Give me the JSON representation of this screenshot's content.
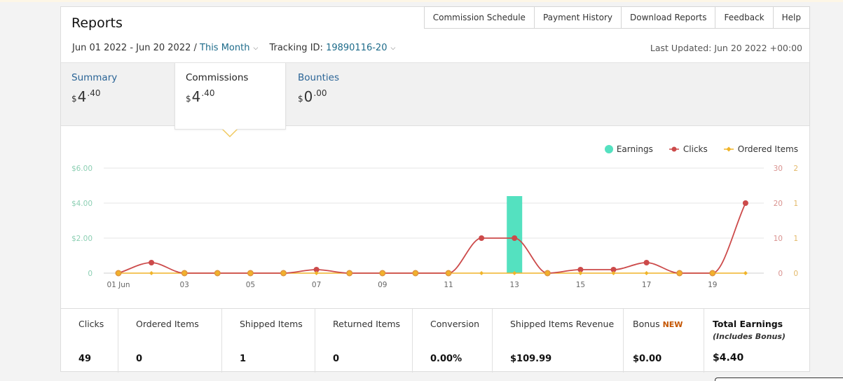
{
  "header": {
    "title": "Reports",
    "nav": [
      "Commission Schedule",
      "Payment History",
      "Download Reports",
      "Feedback",
      "Help"
    ],
    "date_range": "Jun 01 2022 - Jun 20 2022 /",
    "period": "This Month",
    "tracking_label": "Tracking ID:",
    "tracking_id": "19890116-20",
    "last_updated": "Last Updated: Jun 20 2022 +00:00"
  },
  "summary_tabs": [
    {
      "label": "Summary",
      "currency": "$",
      "whole": "4",
      "fraction": ".40"
    },
    {
      "label": "Commissions",
      "currency": "$",
      "whole": "4",
      "fraction": ".40"
    },
    {
      "label": "Bounties",
      "currency": "$",
      "whole": "0",
      "fraction": ".00"
    }
  ],
  "chart_data": {
    "type": "bar+line",
    "legend": [
      "Earnings",
      "Clicks",
      "Ordered Items"
    ],
    "legend_placement": "top-right",
    "x_labels": [
      "01 Jun",
      "03",
      "05",
      "07",
      "09",
      "11",
      "13",
      "15",
      "17",
      "19"
    ],
    "x": [
      1,
      2,
      3,
      4,
      5,
      6,
      7,
      8,
      9,
      10,
      11,
      12,
      13,
      14,
      15,
      16,
      17,
      18,
      19,
      20
    ],
    "y_left_ticks": [
      "0",
      "$2.00",
      "$4.00",
      "$6.00"
    ],
    "y_left_max": 6,
    "y_mid_ticks": [
      "0",
      "10",
      "20",
      "30"
    ],
    "y_mid_max": 30,
    "y_right_ticks": [
      "0",
      "1",
      "1",
      "2"
    ],
    "y_right_max": 2,
    "grid": true,
    "series": [
      {
        "name": "Earnings",
        "axis": "left",
        "color": "#54e1c0",
        "values": [
          0,
          0,
          0,
          0,
          0,
          0,
          0,
          0,
          0,
          0,
          0,
          0,
          4.4,
          0,
          0,
          0,
          0,
          0,
          0,
          0
        ]
      },
      {
        "name": "Clicks",
        "axis": "mid",
        "color": "#cc4a4a",
        "values": [
          0,
          3,
          0,
          0,
          0,
          0,
          1,
          0,
          0,
          0,
          0,
          10,
          10,
          0,
          1,
          1,
          3,
          0,
          0,
          20
        ]
      },
      {
        "name": "Ordered Items",
        "axis": "right",
        "color": "#f0b429",
        "values": [
          0,
          0,
          0,
          0,
          0,
          0,
          0,
          0,
          0,
          0,
          0,
          0,
          0,
          0,
          0,
          0,
          0,
          0,
          0,
          0
        ]
      }
    ]
  },
  "stats": [
    {
      "label": "Clicks",
      "value": "49"
    },
    {
      "label": "Ordered Items",
      "value": "0"
    },
    {
      "label": "Shipped Items",
      "value": "1"
    },
    {
      "label": "Returned Items",
      "value": "0"
    },
    {
      "label": "Conversion",
      "value": "0.00%"
    },
    {
      "label": "Shipped Items Revenue",
      "value": "$109.99"
    },
    {
      "label": "Bonus",
      "badge": "NEW",
      "value": "$0.00"
    },
    {
      "label": "Total Earnings",
      "note": "(Includes Bonus)",
      "value": "$4.40"
    }
  ]
}
